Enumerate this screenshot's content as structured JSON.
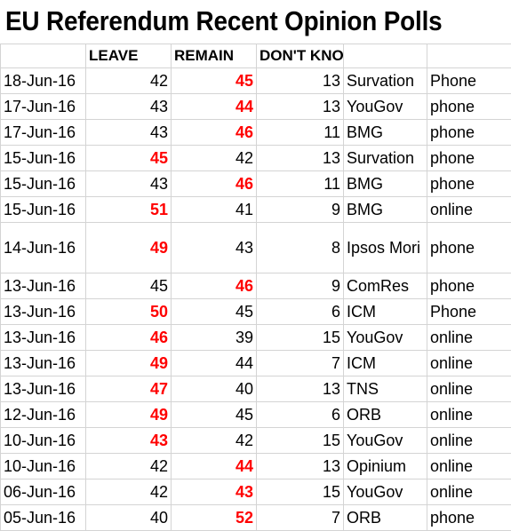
{
  "title": "EU Referendum Recent Opinion Polls",
  "headers": [
    "",
    "LEAVE",
    "REMAIN",
    "DON'T KNOW",
    "",
    ""
  ],
  "rows": [
    {
      "date": "18-Jun-16",
      "leave": "42",
      "remain": "45",
      "dk": "13",
      "pollster": "Survation",
      "mode": "Phone",
      "leave_red": false,
      "remain_red": true
    },
    {
      "date": "17-Jun-16",
      "leave": "43",
      "remain": "44",
      "dk": "13",
      "pollster": "YouGov",
      "mode": "phone",
      "leave_red": false,
      "remain_red": true
    },
    {
      "date": "17-Jun-16",
      "leave": "43",
      "remain": "46",
      "dk": "11",
      "pollster": "BMG",
      "mode": "phone",
      "leave_red": false,
      "remain_red": true
    },
    {
      "date": "15-Jun-16",
      "leave": "45",
      "remain": "42",
      "dk": "13",
      "pollster": "Survation",
      "mode": "phone",
      "leave_red": true,
      "remain_red": false
    },
    {
      "date": "15-Jun-16",
      "leave": "43",
      "remain": "46",
      "dk": "11",
      "pollster": "BMG",
      "mode": "phone",
      "leave_red": false,
      "remain_red": true
    },
    {
      "date": "15-Jun-16",
      "leave": "51",
      "remain": "41",
      "dk": "9",
      "pollster": "BMG",
      "mode": "online",
      "leave_red": true,
      "remain_red": false
    },
    {
      "date": "14-Jun-16",
      "leave": "49",
      "remain": "43",
      "dk": "8",
      "pollster": "Ipsos Mori",
      "mode": "phone",
      "leave_red": true,
      "remain_red": false,
      "tall": true
    },
    {
      "date": "13-Jun-16",
      "leave": "45",
      "remain": "46",
      "dk": "9",
      "pollster": "ComRes",
      "mode": "phone",
      "leave_red": false,
      "remain_red": true
    },
    {
      "date": "13-Jun-16",
      "leave": "50",
      "remain": "45",
      "dk": "6",
      "pollster": "ICM",
      "mode": "Phone",
      "leave_red": true,
      "remain_red": false
    },
    {
      "date": "13-Jun-16",
      "leave": "46",
      "remain": "39",
      "dk": "15",
      "pollster": "YouGov",
      "mode": "online",
      "leave_red": true,
      "remain_red": false
    },
    {
      "date": "13-Jun-16",
      "leave": "49",
      "remain": "44",
      "dk": "7",
      "pollster": "ICM",
      "mode": "online",
      "leave_red": true,
      "remain_red": false
    },
    {
      "date": "13-Jun-16",
      "leave": "47",
      "remain": "40",
      "dk": "13",
      "pollster": "TNS",
      "mode": "online",
      "leave_red": true,
      "remain_red": false
    },
    {
      "date": "12-Jun-16",
      "leave": "49",
      "remain": "45",
      "dk": "6",
      "pollster": "ORB",
      "mode": "online",
      "leave_red": true,
      "remain_red": false
    },
    {
      "date": "10-Jun-16",
      "leave": "43",
      "remain": "42",
      "dk": "15",
      "pollster": "YouGov",
      "mode": "online",
      "leave_red": true,
      "remain_red": false
    },
    {
      "date": "10-Jun-16",
      "leave": "42",
      "remain": "44",
      "dk": "13",
      "pollster": "Opinium",
      "mode": "online",
      "leave_red": false,
      "remain_red": true
    },
    {
      "date": "06-Jun-16",
      "leave": "42",
      "remain": "43",
      "dk": "15",
      "pollster": "YouGov",
      "mode": "online",
      "leave_red": false,
      "remain_red": true
    },
    {
      "date": "05-Jun-16",
      "leave": "40",
      "remain": "52",
      "dk": "7",
      "pollster": "ORB",
      "mode": "phone",
      "leave_red": false,
      "remain_red": true
    }
  ],
  "colors": {
    "highlight": "#ff0000",
    "text": "#000000",
    "gridline": "#d4d4d4"
  }
}
